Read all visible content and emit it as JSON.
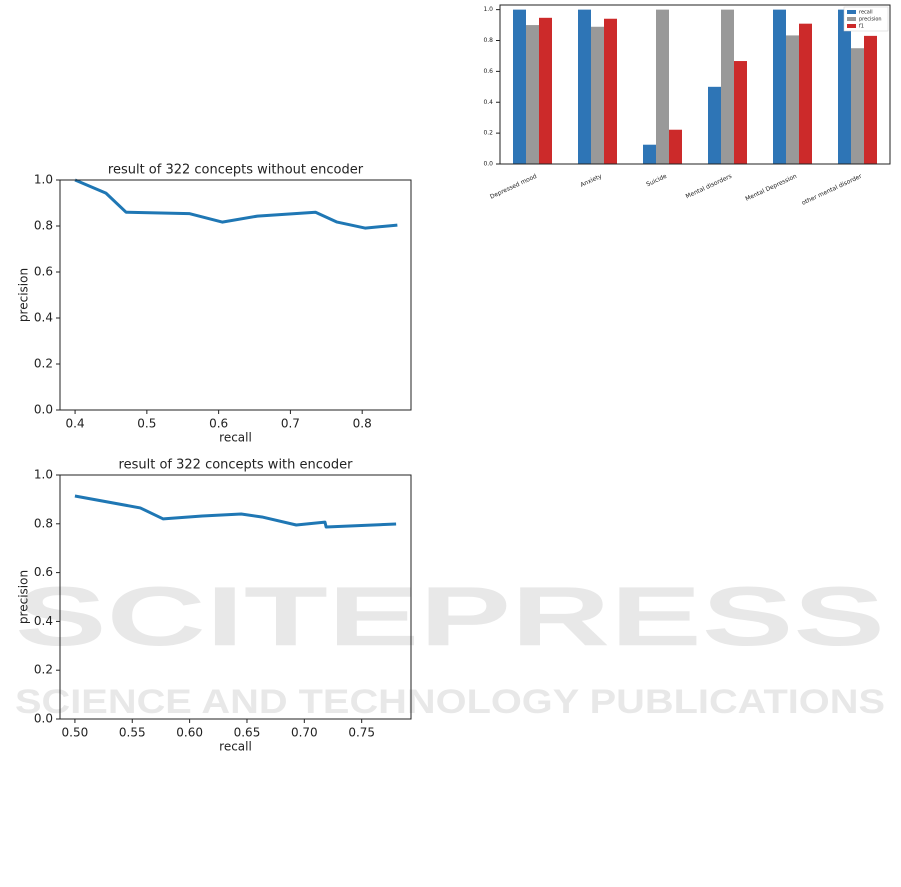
{
  "chart_data": [
    {
      "type": "line",
      "title": "result of 322 concepts without encoder",
      "x_label": "recall",
      "y_label": "precision",
      "x": [
        0.4,
        0.443,
        0.471,
        0.559,
        0.605,
        0.654,
        0.735,
        0.765,
        0.804,
        0.849
      ],
      "values": [
        1.0,
        0.943,
        0.86,
        0.854,
        0.817,
        0.843,
        0.86,
        0.817,
        0.791,
        0.804
      ],
      "color": "#1f77b4",
      "xlim": [
        0.379,
        0.868
      ],
      "ylim": [
        0,
        1.0
      ],
      "xticks": [
        0.4,
        0.5,
        0.6,
        0.7,
        0.8
      ],
      "yticks": [
        {
          "value": 0,
          "label": "0.0"
        },
        0.2,
        0.4,
        0.6,
        0.8,
        {
          "value": 1,
          "label": "1.0"
        }
      ]
    },
    {
      "type": "line",
      "title": "result of 322 concepts with encoder",
      "x_label": "recall",
      "y_label": "precision",
      "x": [
        0.5,
        0.557,
        0.577,
        0.611,
        0.645,
        0.663,
        0.693,
        0.718,
        0.719,
        0.78
      ],
      "values": [
        0.914,
        0.865,
        0.82,
        0.832,
        0.84,
        0.828,
        0.795,
        0.807,
        0.787,
        0.799
      ],
      "color": "#1f77b4",
      "xlim": [
        0.487,
        0.793
      ],
      "ylim": [
        0,
        1.0
      ],
      "xticks": [
        {
          "value": 0.5,
          "label": "0.50"
        },
        0.55,
        {
          "value": 0.6,
          "label": "0.60"
        },
        0.65,
        {
          "value": 0.7,
          "label": "0.70"
        },
        0.75
      ],
      "yticks": [
        {
          "value": 0,
          "label": "0.0"
        },
        0.2,
        0.4,
        0.6,
        0.8,
        {
          "value": 1,
          "label": "1.0"
        }
      ]
    },
    {
      "type": "bar",
      "categories": [
        "Depressed mood",
        "Anxiety",
        "Suicide",
        "Mental disorders",
        "Mental Depression",
        "other mental disorder"
      ],
      "series": [
        {
          "name": "recall",
          "color": "#2e75b6",
          "values": [
            1.0,
            1.0,
            0.125,
            0.5,
            1.0,
            1.0
          ]
        },
        {
          "name": "precision",
          "color": "#999999",
          "values": [
            0.9,
            0.889,
            1.0,
            1.0,
            0.833,
            0.75
          ]
        },
        {
          "name": "f1",
          "color": "#cc2a2a",
          "values": [
            0.947,
            0.941,
            0.222,
            0.667,
            0.909,
            0.83
          ]
        }
      ],
      "ylim": [
        0,
        1.03
      ],
      "yticks": [
        {
          "value": 0,
          "label": "0.0"
        },
        0.2,
        0.4,
        0.6,
        0.8,
        {
          "value": 1,
          "label": "1.0"
        }
      ],
      "legend": "upper right"
    }
  ],
  "watermark": {
    "title": "SCITEPRESS",
    "subtitle": "SCIENCE AND TECHNOLOGY PUBLICATIONS"
  }
}
